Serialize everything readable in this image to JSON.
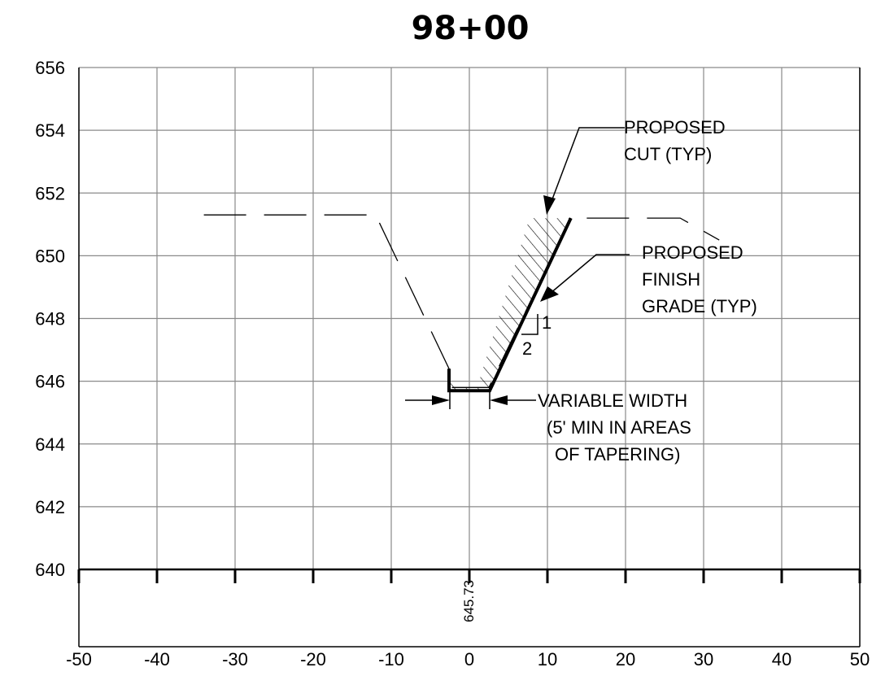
{
  "title": "98+00",
  "chart_data": {
    "type": "cross-section",
    "x_ticks": [
      "-50",
      "-40",
      "-30",
      "-20",
      "-10",
      "0",
      "10",
      "20",
      "30",
      "40",
      "50"
    ],
    "y_ticks": [
      "656",
      "654",
      "652",
      "650",
      "648",
      "646",
      "644",
      "642",
      "640"
    ],
    "xlim": [
      -50,
      50
    ],
    "ylim": [
      640,
      656
    ],
    "grid": true,
    "existing_ground": [
      [
        -34,
        651.3
      ],
      [
        -12,
        651.3
      ],
      [
        -2.6,
        646.4
      ],
      [
        -2.2,
        645.8
      ],
      [
        -1,
        645.8
      ],
      [
        2.5,
        645.8
      ],
      [
        13,
        651.2
      ],
      [
        27,
        651.2
      ],
      [
        32,
        650.5
      ]
    ],
    "proposed_grade": [
      [
        -2.6,
        646.4
      ],
      [
        -2.6,
        645.7
      ],
      [
        2.6,
        645.7
      ],
      [
        13,
        651.2
      ]
    ],
    "cut_region": [
      [
        -2.6,
        646.4
      ],
      [
        -2.6,
        645.7
      ],
      [
        2.6,
        645.7
      ],
      [
        13,
        651.2
      ],
      [
        7.7,
        651.2
      ],
      [
        1.0,
        645.8
      ],
      [
        -1.5,
        645.8
      ]
    ],
    "centerline_elevation": "645.73",
    "slope_rise": "1",
    "slope_run": "2"
  },
  "annotations": {
    "proposed_cut": [
      "PROPOSED",
      "CUT (TYP)"
    ],
    "finish_grade": [
      "PROPOSED",
      "FINISH",
      "GRADE (TYP)"
    ],
    "variable_width": [
      "VARIABLE WIDTH",
      "(5' MIN IN AREAS",
      "OF TAPERING)"
    ]
  }
}
